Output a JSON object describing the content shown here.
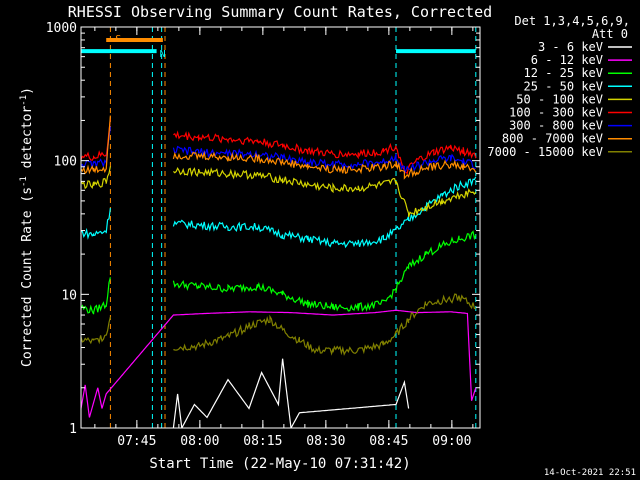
{
  "chart_data": {
    "type": "line",
    "title": "RHESSI Observing Summary Count Rates, Corrected",
    "xlabel": "Start Time (22-May-10 07:31:42)",
    "ylabel_parts": [
      "Corrected Count Rate (s",
      "-1",
      " detector",
      "-1",
      ")"
    ],
    "x_unit": "minutes since 07:31:42",
    "xlim": [
      0,
      95
    ],
    "ylim": [
      1,
      1000
    ],
    "yscale": "log",
    "x_ticks": [
      {
        "value": 13.3,
        "label": "07:45"
      },
      {
        "value": 28.3,
        "label": "08:00"
      },
      {
        "value": 43.3,
        "label": "08:15"
      },
      {
        "value": 58.3,
        "label": "08:30"
      },
      {
        "value": 73.3,
        "label": "08:45"
      },
      {
        "value": 88.3,
        "label": "09:00"
      }
    ],
    "y_ticks": [
      {
        "value": 1,
        "label": "1"
      },
      {
        "value": 10,
        "label": "10"
      },
      {
        "value": 100,
        "label": "100"
      },
      {
        "value": 1000,
        "label": "1000"
      }
    ],
    "legend_header": [
      "Det 1,3,4,5,6,9,",
      "Att 0"
    ],
    "legend_placement": "right",
    "series": [
      {
        "name": "3 - 6 keV",
        "color": "#ffffff",
        "points": [
          [
            22,
            1
          ],
          [
            23,
            1.8
          ],
          [
            24,
            1
          ],
          [
            27,
            1.5
          ],
          [
            30,
            1.2
          ],
          [
            35,
            2.3
          ],
          [
            40,
            1.4
          ],
          [
            43,
            2.6
          ],
          [
            47,
            1.5
          ],
          [
            48,
            3.3
          ],
          [
            50,
            1
          ],
          [
            52,
            1.3
          ],
          [
            75,
            1.5
          ],
          [
            77,
            2.2
          ],
          [
            78,
            1.4
          ]
        ]
      },
      {
        "name": "6 - 12 keV",
        "color": "#ff00ff",
        "points": [
          [
            0,
            1.4
          ],
          [
            1,
            2.1
          ],
          [
            2,
            1.2
          ],
          [
            4,
            2
          ],
          [
            5,
            1.4
          ],
          [
            6,
            1.8
          ],
          [
            22,
            7
          ],
          [
            30,
            7.2
          ],
          [
            40,
            7.4
          ],
          [
            50,
            7.3
          ],
          [
            60,
            7
          ],
          [
            70,
            7.3
          ],
          [
            75,
            7.6
          ],
          [
            80,
            7.3
          ],
          [
            88,
            7.4
          ],
          [
            92,
            7.2
          ],
          [
            93,
            1.6
          ],
          [
            94,
            2
          ]
        ]
      },
      {
        "name": "12 - 25 keV",
        "color": "#00ff00",
        "points": [
          [
            0,
            8
          ],
          [
            3,
            7.5
          ],
          [
            6,
            8.5
          ],
          [
            7,
            14
          ],
          [
            22,
            12
          ],
          [
            28,
            11.5
          ],
          [
            35,
            11
          ],
          [
            42,
            11.5
          ],
          [
            48,
            10
          ],
          [
            54,
            8.5
          ],
          [
            60,
            8
          ],
          [
            66,
            8
          ],
          [
            72,
            8.5
          ],
          [
            75,
            11
          ],
          [
            78,
            16
          ],
          [
            82,
            20
          ],
          [
            86,
            23
          ],
          [
            90,
            26
          ],
          [
            94,
            28
          ]
        ]
      },
      {
        "name": "25 - 50 keV",
        "color": "#00ffff",
        "points": [
          [
            0,
            29
          ],
          [
            3,
            28
          ],
          [
            6,
            30
          ],
          [
            7,
            45
          ],
          [
            22,
            34
          ],
          [
            28,
            33
          ],
          [
            35,
            32
          ],
          [
            42,
            32
          ],
          [
            48,
            28
          ],
          [
            54,
            26
          ],
          [
            60,
            24
          ],
          [
            66,
            24
          ],
          [
            72,
            26
          ],
          [
            75,
            30
          ],
          [
            78,
            36
          ],
          [
            82,
            45
          ],
          [
            86,
            55
          ],
          [
            90,
            65
          ],
          [
            94,
            72
          ]
        ]
      },
      {
        "name": "50 - 100 keV",
        "color": "#d4d400",
        "points": [
          [
            0,
            67
          ],
          [
            3,
            65
          ],
          [
            6,
            70
          ],
          [
            7,
            90
          ],
          [
            22,
            85
          ],
          [
            28,
            82
          ],
          [
            35,
            80
          ],
          [
            42,
            78
          ],
          [
            48,
            72
          ],
          [
            54,
            66
          ],
          [
            60,
            62
          ],
          [
            66,
            62
          ],
          [
            72,
            66
          ],
          [
            75,
            70
          ],
          [
            78,
            40
          ],
          [
            82,
            45
          ],
          [
            86,
            50
          ],
          [
            90,
            55
          ],
          [
            94,
            60
          ]
        ]
      },
      {
        "name": "100 - 300 keV",
        "color": "#ff0000",
        "points": [
          [
            0,
            108
          ],
          [
            3,
            106
          ],
          [
            6,
            112
          ],
          [
            7,
            200
          ],
          [
            22,
            155
          ],
          [
            28,
            150
          ],
          [
            35,
            145
          ],
          [
            42,
            140
          ],
          [
            48,
            130
          ],
          [
            54,
            118
          ],
          [
            60,
            112
          ],
          [
            66,
            112
          ],
          [
            72,
            118
          ],
          [
            75,
            130
          ],
          [
            77,
            80
          ],
          [
            80,
            100
          ],
          [
            84,
            115
          ],
          [
            88,
            125
          ],
          [
            91,
            118
          ],
          [
            94,
            110
          ]
        ]
      },
      {
        "name": "300 - 800 keV",
        "color": "#0000ff",
        "points": [
          [
            0,
            95
          ],
          [
            3,
            94
          ],
          [
            6,
            98
          ],
          [
            7,
            170
          ],
          [
            22,
            120
          ],
          [
            28,
            116
          ],
          [
            35,
            113
          ],
          [
            42,
            112
          ],
          [
            48,
            105
          ],
          [
            54,
            98
          ],
          [
            60,
            94
          ],
          [
            66,
            94
          ],
          [
            72,
            98
          ],
          [
            75,
            108
          ],
          [
            77,
            85
          ],
          [
            80,
            92
          ],
          [
            84,
            100
          ],
          [
            88,
            104
          ],
          [
            91,
            98
          ],
          [
            94,
            92
          ]
        ]
      },
      {
        "name": "800 - 7000 keV",
        "color": "#ff8c00",
        "points": [
          [
            0,
            86
          ],
          [
            3,
            85
          ],
          [
            6,
            88
          ],
          [
            7,
            230
          ],
          [
            22,
            110
          ],
          [
            28,
            108
          ],
          [
            35,
            106
          ],
          [
            42,
            104
          ],
          [
            48,
            98
          ],
          [
            54,
            90
          ],
          [
            60,
            86
          ],
          [
            66,
            86
          ],
          [
            72,
            90
          ],
          [
            75,
            96
          ],
          [
            77,
            78
          ],
          [
            80,
            84
          ],
          [
            84,
            90
          ],
          [
            88,
            94
          ],
          [
            91,
            90
          ],
          [
            94,
            85
          ]
        ]
      },
      {
        "name": "7000 - 15000 keV",
        "color": "#808000",
        "points": [
          [
            0,
            4.6
          ],
          [
            3,
            4.4
          ],
          [
            6,
            5
          ],
          [
            7,
            7
          ],
          [
            22,
            4
          ],
          [
            28,
            4.1
          ],
          [
            35,
            4.8
          ],
          [
            40,
            5.8
          ],
          [
            45,
            6.5
          ],
          [
            48,
            5.4
          ],
          [
            52,
            4.5
          ],
          [
            56,
            3.8
          ],
          [
            60,
            3.8
          ],
          [
            66,
            3.8
          ],
          [
            72,
            4.2
          ],
          [
            75,
            5
          ],
          [
            78,
            6.5
          ],
          [
            82,
            8.5
          ],
          [
            86,
            9
          ],
          [
            90,
            9.5
          ],
          [
            94,
            8
          ]
        ]
      }
    ],
    "flag_bars": [
      {
        "label": "S",
        "color": "#ff8c00",
        "x": [
          6,
          19.5
        ],
        "y": 800
      },
      {
        "label": "N",
        "color": "#00ffff",
        "x": [
          0,
          18
        ],
        "y": 660
      },
      {
        "label": "",
        "color": "#00ffff",
        "x": [
          75,
          94
        ],
        "y": 660
      }
    ],
    "dashed_lines": [
      {
        "color": "#ff8c00",
        "x": 7
      },
      {
        "color": "#ff8c00",
        "x": 20
      },
      {
        "color": "#00ffff",
        "x": 17
      },
      {
        "color": "#00ffff",
        "x": 19.2
      },
      {
        "color": "#00ffff",
        "x": 75
      },
      {
        "color": "#00ffff",
        "x": 94
      }
    ],
    "timestamp": "14-Oct-2021 22:51"
  }
}
